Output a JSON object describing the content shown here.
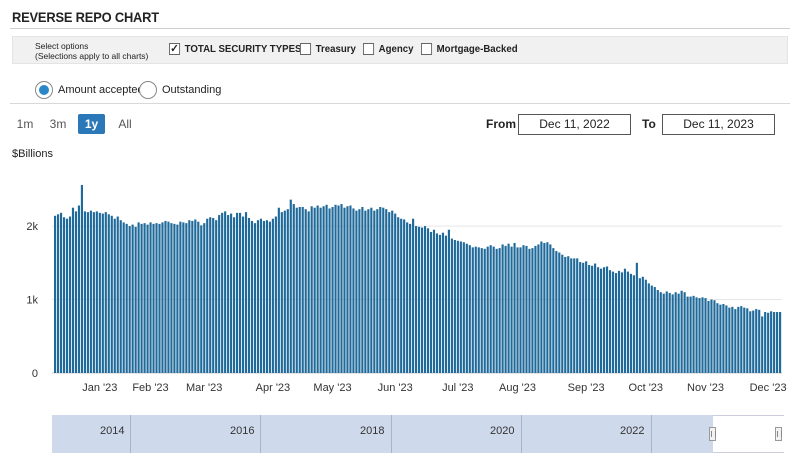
{
  "header": {
    "title": "REVERSE REPO CHART"
  },
  "options": {
    "label_line1": "Select options",
    "label_line2": "(Selections apply to all charts)",
    "checkboxes": [
      {
        "label": "TOTAL SECURITY TYPES",
        "checked": true
      },
      {
        "label": "Treasury",
        "checked": false
      },
      {
        "label": "Agency",
        "checked": false
      },
      {
        "label": "Mortgage-Backed",
        "checked": false
      }
    ]
  },
  "view": {
    "radios": [
      {
        "label": "Amount accepted",
        "selected": true
      },
      {
        "label": "Outstanding",
        "selected": false
      }
    ]
  },
  "range": {
    "buttons": [
      {
        "label": "1m",
        "active": false
      },
      {
        "label": "3m",
        "active": false
      },
      {
        "label": "1y",
        "active": true
      },
      {
        "label": "All",
        "active": false
      }
    ],
    "from_label": "From",
    "from_value": "Dec 11, 2022",
    "to_label": "To",
    "to_value": "Dec 11, 2023"
  },
  "navigator": {
    "labels": [
      "2014",
      "2016",
      "2018",
      "2020",
      "2022"
    ]
  },
  "chart_data": {
    "type": "bar",
    "ylabel": "$Billions",
    "ylim": [
      0,
      2600
    ],
    "y_ticks": [
      {
        "value": 0,
        "label": "0"
      },
      {
        "value": 1000,
        "label": "1k"
      },
      {
        "value": 2000,
        "label": "2k"
      }
    ],
    "x_ticks": [
      "Jan '23",
      "Feb '23",
      "Mar '23",
      "Apr '23",
      "May '23",
      "Jun '23",
      "Jul '23",
      "Aug '23",
      "Sep '23",
      "Oct '23",
      "Nov '23",
      "Dec '23"
    ],
    "color": "#1f6a9a",
    "grid": true,
    "legend": "none",
    "monthly_levels": {
      "Dec '22": [
        2140,
        2160,
        2180,
        2120,
        2100,
        2130,
        2250,
        2200,
        2280,
        2560,
        2200,
        2190
      ],
      "Jan '23": [
        2210,
        2190,
        2200,
        2180,
        2170,
        2190,
        2160,
        2140,
        2100,
        2130,
        2080,
        2050,
        2030,
        2000,
        2020,
        1990,
        2050
      ],
      "Feb '23": [
        2030,
        2040,
        2020,
        2050,
        2030,
        2040,
        2030,
        2050,
        2070,
        2060,
        2040,
        2030,
        2020,
        2060,
        2050,
        2040,
        2080,
        2070
      ],
      "Mar '23": [
        2090,
        2060,
        2010,
        2040,
        2100,
        2120,
        2110,
        2080,
        2150,
        2180,
        2200,
        2150,
        2170,
        2120,
        2180,
        2180,
        2130,
        2190,
        2110,
        2070,
        2040,
        2080,
        2100
      ],
      "Apr '23": [
        2070,
        2080,
        2060,
        2100,
        2130,
        2250,
        2190,
        2210,
        2230,
        2360,
        2300,
        2250,
        2260,
        2260,
        2230,
        2200,
        2270,
        2250,
        2280,
        2250
      ],
      "May '23": [
        2270,
        2290,
        2240,
        2260,
        2290,
        2280,
        2300,
        2250,
        2270,
        2280,
        2240,
        2210,
        2230,
        2260,
        2210,
        2230,
        2250,
        2210,
        2230,
        2260,
        2250
      ],
      "Jun '23": [
        2230,
        2190,
        2210,
        2170,
        2120,
        2100,
        2090,
        2050,
        2030,
        2100,
        2000,
        1990,
        1980,
        2000,
        1970,
        1920,
        1950,
        1900,
        1880,
        1910,
        1870
      ],
      "Jul '23": [
        1950,
        1830,
        1810,
        1800,
        1790,
        1780,
        1760,
        1740,
        1710,
        1720,
        1710,
        1700,
        1690,
        1720,
        1740,
        1720,
        1690,
        1700,
        1750,
        1730
      ],
      "Aug '23": [
        1760,
        1720,
        1770,
        1710,
        1710,
        1740,
        1730,
        1690,
        1700,
        1730,
        1750,
        1790,
        1770,
        1780,
        1750,
        1700,
        1660,
        1640,
        1610,
        1580,
        1590,
        1560,
        1560
      ],
      "Sep '23": [
        1560,
        1510,
        1500,
        1520,
        1470,
        1460,
        1490,
        1440,
        1420,
        1440,
        1450,
        1400,
        1380,
        1360,
        1390,
        1370,
        1420,
        1380,
        1350,
        1330
      ],
      "Oct '23": [
        1500,
        1290,
        1310,
        1270,
        1220,
        1190,
        1170,
        1130,
        1100,
        1080,
        1110,
        1090,
        1070,
        1100,
        1080,
        1120,
        1100,
        1040,
        1040,
        1050
      ],
      "Nov '23": [
        1030,
        1020,
        1030,
        1020,
        980,
        1000,
        990,
        950,
        930,
        940,
        920,
        890,
        900,
        870,
        900,
        910,
        890,
        880,
        840,
        850,
        870
      ],
      "Dec '23": [
        860,
        770,
        830,
        820,
        840,
        830,
        830,
        830
      ]
    }
  }
}
